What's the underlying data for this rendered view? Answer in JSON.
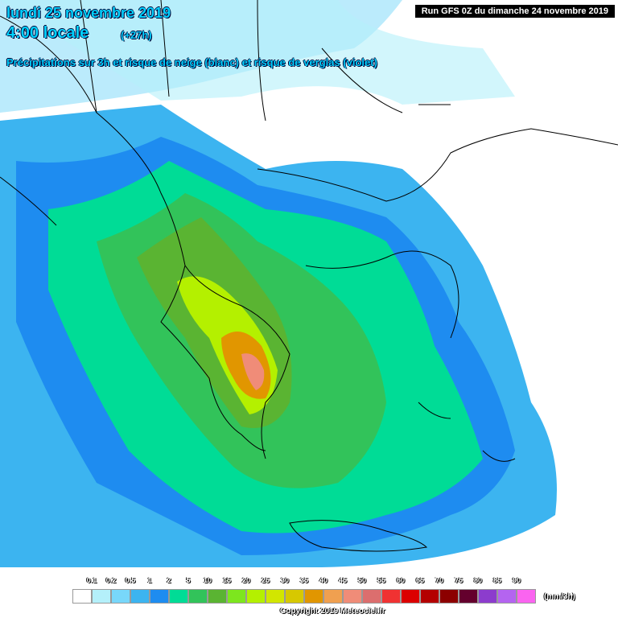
{
  "header": {
    "date": "lundi 25 novembre 2019",
    "time": "4:00 locale",
    "offset": "(+27h)",
    "subtitle": "Précipitations sur 3h et risque de neige (blanc) et risque de verglas (violet)",
    "run": "Run GFS 0Z du dimanche 24 novembre 2019"
  },
  "legend": {
    "labels": [
      "0.1",
      "0.2",
      "0.5",
      "1",
      "2",
      "5",
      "10",
      "15",
      "20",
      "25",
      "30",
      "35",
      "40",
      "45",
      "50",
      "55",
      "60",
      "65",
      "70",
      "75",
      "80",
      "85",
      "90"
    ],
    "colors": [
      "#ffffff",
      "#b4f0fa",
      "#78d7fa",
      "#3cb4f0",
      "#1e8cf0",
      "#00dc96",
      "#32c35a",
      "#5ab432",
      "#7de61e",
      "#b4f000",
      "#d2e600",
      "#d7c800",
      "#e19600",
      "#f0a050",
      "#f08c78",
      "#dc6e6e",
      "#f03232",
      "#dc0000",
      "#b40000",
      "#8c0000",
      "#64002d",
      "#8c3ccd",
      "#b464f0",
      "#fa64f0"
    ],
    "unit": "(mm/3h)"
  },
  "footer": {
    "copyright": "Copyright 2019 Meteociel.fr"
  }
}
